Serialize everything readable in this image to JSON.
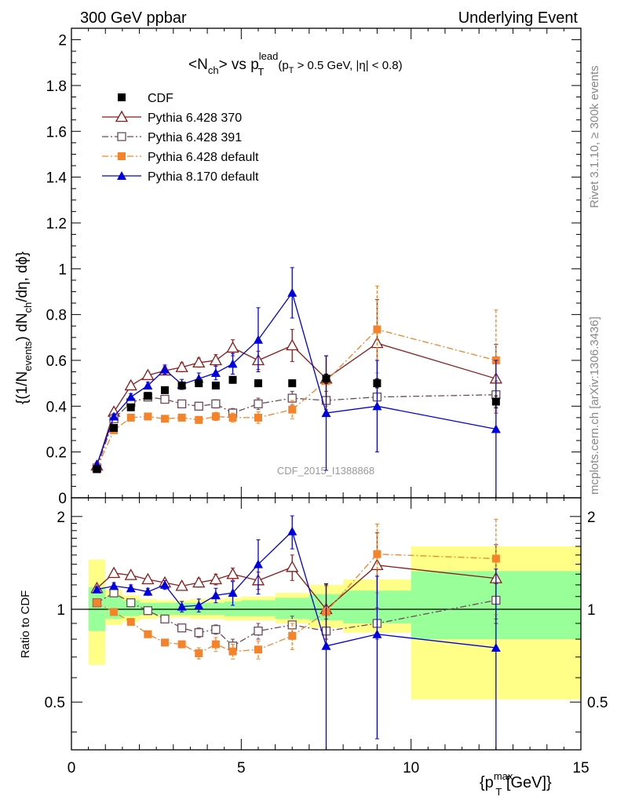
{
  "header": {
    "left": "300 GeV ppbar",
    "right": "Underlying Event"
  },
  "side": {
    "rivet": "Rivet 3.1.10, ≥ 300k events",
    "mcplots": "mcplots.cern.ch [arXiv:1306.3436]"
  },
  "watermark": "CDF_2015_I1388868",
  "chart_data": [
    {
      "type": "scatter",
      "panel": "main",
      "title_parts": {
        "lhs": "<N",
        "ch": "ch",
        "mid": "> vs p",
        "lead": "lead",
        "T": "T",
        "cond": "(p",
        "condT": "T",
        "cond2": " > 0.5 GeV, |η| < 0.8)"
      },
      "ylabel_parts": {
        "a": "{(1/N",
        "events": "events",
        "b": ") dN",
        "ch": "ch",
        "c": "/dη, dϕ}"
      },
      "xlim": [
        0,
        15
      ],
      "ylim": [
        0,
        2.05
      ],
      "y_ticks": [
        "0",
        "0.2",
        "0.4",
        "0.6",
        "0.8",
        "1",
        "1.2",
        "1.4",
        "1.6",
        "1.8",
        "2"
      ],
      "legend_position": "top-left",
      "series": [
        {
          "name": "CDF",
          "color": "#000000",
          "marker": "square-filled",
          "x": [
            0.75,
            1.25,
            1.75,
            2.25,
            2.75,
            3.25,
            3.75,
            4.25,
            4.75,
            5.5,
            6.5,
            7.5,
            9.0,
            12.5
          ],
          "y": [
            0.125,
            0.305,
            0.395,
            0.445,
            0.47,
            0.49,
            0.5,
            0.49,
            0.515,
            0.5,
            0.5,
            0.52,
            0.5,
            0.42
          ],
          "err": [
            0.008,
            0.01,
            0.01,
            0.012,
            0.012,
            0.012,
            0.013,
            0.013,
            0.015,
            0.015,
            0.015,
            0.02,
            0.02,
            0.025
          ]
        },
        {
          "name": "Pythia 6.428 370",
          "color": "#8b1a1a",
          "marker": "triangle-open",
          "line": "solid",
          "x": [
            0.75,
            1.25,
            1.75,
            2.25,
            2.75,
            3.25,
            3.75,
            4.25,
            4.75,
            5.5,
            6.5,
            7.5,
            9.0,
            12.5
          ],
          "y": [
            0.14,
            0.375,
            0.49,
            0.535,
            0.555,
            0.57,
            0.59,
            0.6,
            0.655,
            0.6,
            0.665,
            0.52,
            0.675,
            0.52
          ],
          "err": [
            0.008,
            0.012,
            0.015,
            0.015,
            0.018,
            0.02,
            0.02,
            0.025,
            0.035,
            0.04,
            0.07,
            0.1,
            0.19,
            0.15
          ]
        },
        {
          "name": "Pythia 6.428 391",
          "color": "#6b4a5a",
          "marker": "square-open",
          "line": "dashdot",
          "x": [
            0.75,
            1.25,
            1.75,
            2.25,
            2.75,
            3.25,
            3.75,
            4.25,
            4.75,
            5.5,
            6.5,
            7.5,
            9.0,
            12.5
          ],
          "y": [
            0.13,
            0.345,
            0.415,
            0.44,
            0.43,
            0.41,
            0.4,
            0.41,
            0.37,
            0.41,
            0.435,
            0.425,
            0.44,
            0.45
          ],
          "err": [
            0.006,
            0.01,
            0.012,
            0.012,
            0.012,
            0.014,
            0.015,
            0.018,
            0.02,
            0.025,
            0.03,
            0.04,
            0.05,
            0.06
          ]
        },
        {
          "name": "Pythia 6.428 default",
          "color": "#f5832a",
          "marker": "square-filled",
          "line": "dashdot",
          "x": [
            0.75,
            1.25,
            1.75,
            2.25,
            2.75,
            3.25,
            3.75,
            4.25,
            4.75,
            5.5,
            6.5,
            7.5,
            9.0,
            12.5
          ],
          "y": [
            0.13,
            0.295,
            0.35,
            0.355,
            0.345,
            0.35,
            0.34,
            0.355,
            0.35,
            0.35,
            0.385,
            0.51,
            0.735,
            0.6
          ],
          "err": [
            0.006,
            0.01,
            0.012,
            0.012,
            0.012,
            0.012,
            0.015,
            0.018,
            0.02,
            0.025,
            0.04,
            0.11,
            0.19,
            0.22
          ]
        },
        {
          "name": "Pythia 8.170 default",
          "color": "#0000e0",
          "marker": "triangle-filled",
          "line": "solid",
          "x": [
            0.75,
            1.25,
            1.75,
            2.25,
            2.75,
            3.25,
            3.75,
            4.25,
            4.75,
            5.5,
            6.5,
            7.5,
            9.0,
            12.5
          ],
          "y": [
            0.145,
            0.355,
            0.44,
            0.49,
            0.56,
            0.495,
            0.52,
            0.545,
            0.585,
            0.69,
            0.895,
            0.37,
            0.4,
            0.3
          ],
          "err": [
            0.008,
            0.012,
            0.015,
            0.015,
            0.02,
            0.022,
            0.025,
            0.03,
            0.045,
            0.14,
            0.11,
            0.25,
            0.2,
            0.3
          ]
        }
      ]
    },
    {
      "type": "scatter",
      "panel": "ratio",
      "ylabel": "Ratio to CDF",
      "xlabel_parts": {
        "a": "{p",
        "max": "max",
        "T": "T",
        "b": " [GeV]}"
      },
      "xlim": [
        0,
        15
      ],
      "ylim": [
        0.35,
        2.3
      ],
      "log_y": true,
      "x_ticks": [
        "0",
        "5",
        "10",
        "15"
      ],
      "y_ticks": [
        "0.5",
        "1",
        "2"
      ],
      "ratio_line": 1,
      "bands": [
        {
          "x0": 0.5,
          "x1": 1.0,
          "inner": [
            0.85,
            1.18
          ],
          "outer": [
            0.66,
            1.45
          ]
        },
        {
          "x0": 1.0,
          "x1": 1.5,
          "inner": [
            0.93,
            1.1
          ],
          "outer": [
            0.89,
            1.16
          ]
        },
        {
          "x0": 1.5,
          "x1": 2.0,
          "inner": [
            0.95,
            1.07
          ],
          "outer": [
            0.91,
            1.11
          ]
        },
        {
          "x0": 2.0,
          "x1": 2.5,
          "inner": [
            0.96,
            1.05
          ],
          "outer": [
            0.93,
            1.08
          ]
        },
        {
          "x0": 2.5,
          "x1": 3.0,
          "inner": [
            0.96,
            1.05
          ],
          "outer": [
            0.94,
            1.07
          ]
        },
        {
          "x0": 3.0,
          "x1": 3.5,
          "inner": [
            0.96,
            1.05
          ],
          "outer": [
            0.94,
            1.07
          ]
        },
        {
          "x0": 3.5,
          "x1": 4.0,
          "inner": [
            0.96,
            1.05
          ],
          "outer": [
            0.93,
            1.08
          ]
        },
        {
          "x0": 4.0,
          "x1": 4.5,
          "inner": [
            0.96,
            1.05
          ],
          "outer": [
            0.93,
            1.08
          ]
        },
        {
          "x0": 4.5,
          "x1": 5.0,
          "inner": [
            0.95,
            1.06
          ],
          "outer": [
            0.92,
            1.09
          ]
        },
        {
          "x0": 5.0,
          "x1": 6.0,
          "inner": [
            0.95,
            1.07
          ],
          "outer": [
            0.92,
            1.1
          ]
        },
        {
          "x0": 6.0,
          "x1": 7.0,
          "inner": [
            0.93,
            1.09
          ],
          "outer": [
            0.9,
            1.13
          ]
        },
        {
          "x0": 7.0,
          "x1": 8.0,
          "inner": [
            0.92,
            1.12
          ],
          "outer": [
            0.87,
            1.2
          ]
        },
        {
          "x0": 8.0,
          "x1": 10.0,
          "inner": [
            0.9,
            1.15
          ],
          "outer": [
            0.84,
            1.25
          ]
        },
        {
          "x0": 10.0,
          "x1": 15.0,
          "inner": [
            0.8,
            1.33
          ],
          "outer": [
            0.51,
            1.6
          ]
        }
      ],
      "series": [
        {
          "name": "CDF",
          "color": "#000000",
          "marker": "none",
          "x": [
            0.75,
            1.25,
            1.75,
            2.25,
            2.75,
            3.25,
            3.75,
            4.25,
            4.75,
            5.5,
            6.5,
            7.5,
            9.0,
            12.5
          ],
          "y": [
            1.0,
            1.0,
            1.0,
            1.0,
            1.0,
            1.0,
            1.0,
            1.0,
            1.0,
            1.0,
            1.0,
            1.0,
            1.0,
            1.0
          ],
          "err": [
            0,
            0,
            0,
            0,
            0,
            0,
            0,
            0,
            0,
            0,
            0,
            0,
            0,
            0
          ]
        },
        {
          "name": "Pythia 6.428 370",
          "color": "#8b1a1a",
          "marker": "triangle-open",
          "line": "solid",
          "x": [
            0.75,
            1.25,
            1.75,
            2.25,
            2.75,
            3.25,
            3.75,
            4.25,
            4.75,
            5.5,
            6.5,
            7.5,
            9.0,
            12.5
          ],
          "y": [
            1.17,
            1.31,
            1.29,
            1.25,
            1.22,
            1.19,
            1.22,
            1.25,
            1.3,
            1.24,
            1.37,
            1.0,
            1.39,
            1.26
          ],
          "err": [
            0.02,
            0.03,
            0.03,
            0.03,
            0.03,
            0.03,
            0.04,
            0.05,
            0.06,
            0.08,
            0.13,
            0.2,
            0.38,
            0.36
          ]
        },
        {
          "name": "Pythia 6.428 391",
          "color": "#6b4a5a",
          "marker": "square-open",
          "line": "dashdot",
          "x": [
            0.75,
            1.25,
            1.75,
            2.25,
            2.75,
            3.25,
            3.75,
            4.25,
            4.75,
            5.5,
            6.5,
            7.5,
            9.0,
            12.5
          ],
          "y": [
            1.05,
            1.13,
            1.05,
            0.99,
            0.93,
            0.87,
            0.84,
            0.86,
            0.76,
            0.85,
            0.89,
            0.85,
            0.9,
            1.07
          ],
          "err": [
            0.02,
            0.02,
            0.02,
            0.02,
            0.02,
            0.02,
            0.03,
            0.03,
            0.04,
            0.05,
            0.06,
            0.08,
            0.1,
            0.14
          ]
        },
        {
          "name": "Pythia 6.428 default",
          "color": "#f5832a",
          "marker": "square-filled",
          "line": "dashdot",
          "x": [
            0.75,
            1.25,
            1.75,
            2.25,
            2.75,
            3.25,
            3.75,
            4.25,
            4.75,
            5.5,
            6.5,
            7.5,
            9.0,
            12.5
          ],
          "y": [
            1.05,
            0.98,
            0.91,
            0.83,
            0.78,
            0.77,
            0.72,
            0.77,
            0.73,
            0.74,
            0.82,
            0.98,
            1.51,
            1.46
          ],
          "err": [
            0.02,
            0.02,
            0.02,
            0.02,
            0.02,
            0.02,
            0.03,
            0.04,
            0.04,
            0.05,
            0.08,
            0.21,
            0.38,
            0.5
          ]
        },
        {
          "name": "Pythia 8.170 default",
          "color": "#0000e0",
          "marker": "triangle-filled",
          "line": "solid",
          "x": [
            0.75,
            1.25,
            1.75,
            2.25,
            2.75,
            3.25,
            3.75,
            4.25,
            4.75,
            5.5,
            6.5,
            7.5,
            9.0,
            12.5
          ],
          "y": [
            1.16,
            1.19,
            1.17,
            1.14,
            1.2,
            1.02,
            1.03,
            1.11,
            1.13,
            1.4,
            1.79,
            0.76,
            0.83,
            0.75
          ],
          "err": [
            0.02,
            0.03,
            0.03,
            0.03,
            0.04,
            0.04,
            0.05,
            0.06,
            0.1,
            0.28,
            0.22,
            0.45,
            0.45,
            0.6
          ]
        }
      ]
    }
  ]
}
